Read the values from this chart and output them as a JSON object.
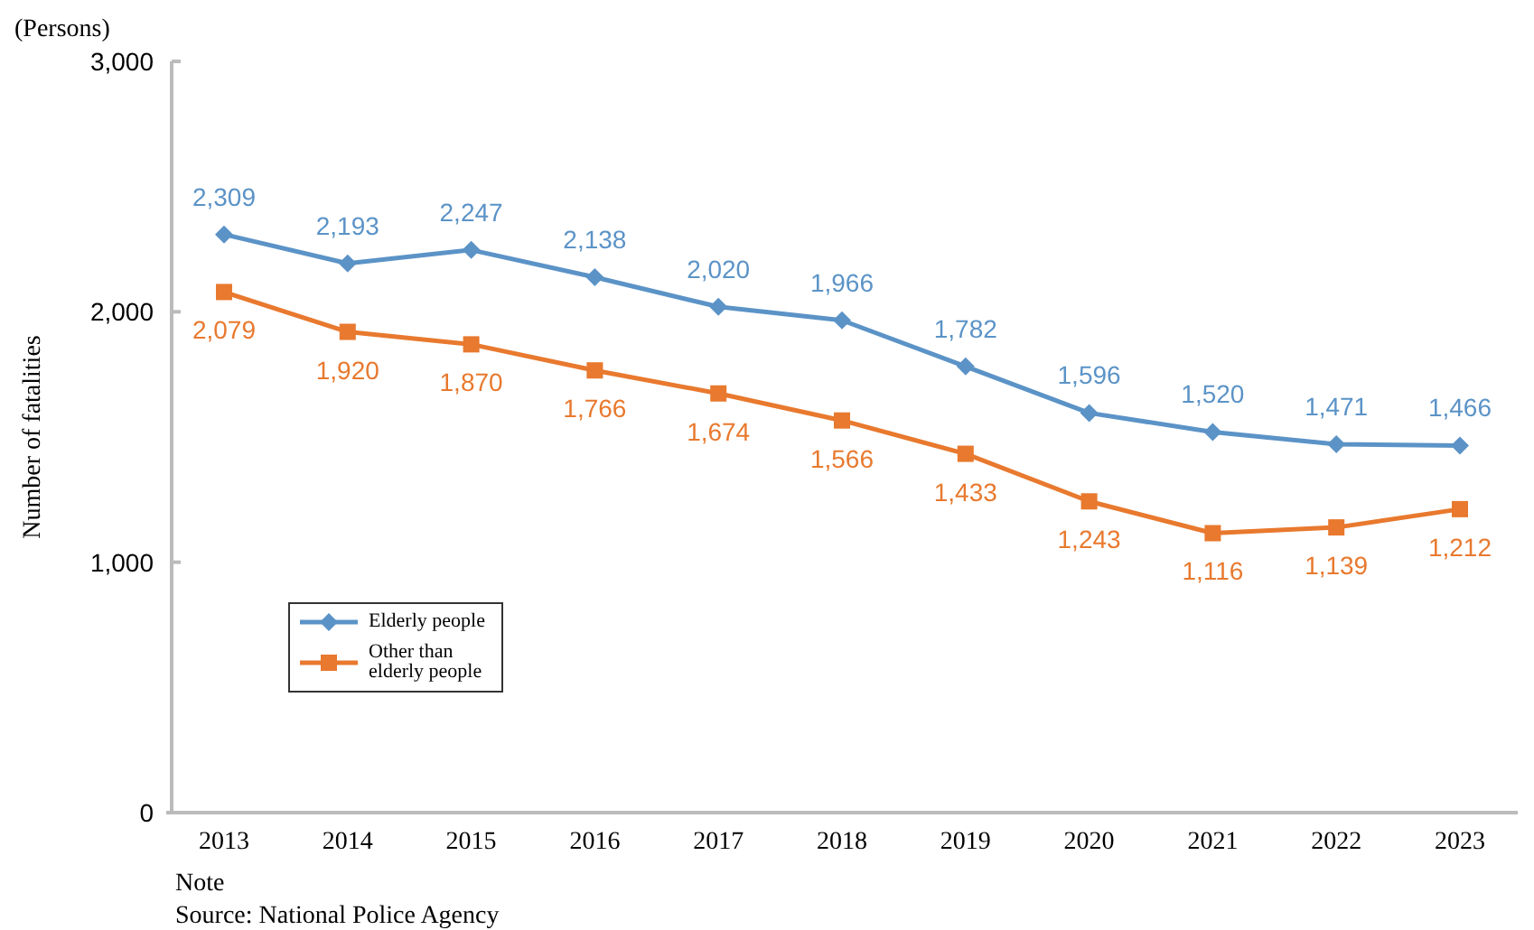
{
  "chart_data": {
    "type": "line",
    "ylabel": "Number of fatalities",
    "categories": [
      "2013",
      "2014",
      "2015",
      "2016",
      "2017",
      "2018",
      "2019",
      "2020",
      "2021",
      "2022",
      "2023"
    ],
    "series": [
      {
        "name": "Elderly people",
        "color": "#5b93c7",
        "marker": "diamond",
        "values": [
          2309,
          2193,
          2247,
          2138,
          2020,
          1966,
          1782,
          1596,
          1520,
          1471,
          1466
        ],
        "value_labels": [
          "2,309",
          "2,193",
          "2,247",
          "2,138",
          "2,020",
          "1,966",
          "1,782",
          "1,596",
          "1,520",
          "1,471",
          "1,466"
        ]
      },
      {
        "name": "Other than elderly people",
        "color": "#e8792e",
        "marker": "square",
        "values": [
          2079,
          1920,
          1870,
          1766,
          1674,
          1566,
          1433,
          1243,
          1116,
          1139,
          1212
        ],
        "value_labels": [
          "2,079",
          "1,920",
          "1,870",
          "1,766",
          "1,674",
          "1,566",
          "1,433",
          "1,243",
          "1,116",
          "1,139",
          "1,212"
        ]
      }
    ],
    "ylim": [
      0,
      3000
    ],
    "yticks": [
      {
        "value": 0,
        "label": "0"
      },
      {
        "value": 1000,
        "label": "1,000"
      },
      {
        "value": 2000,
        "label": "2,000"
      },
      {
        "value": 3000,
        "label": "3,000"
      }
    ],
    "legend": "bottom left",
    "grid": false,
    "annotations": [
      "(Persons)",
      "Note",
      "Source: National Police Agency"
    ]
  }
}
